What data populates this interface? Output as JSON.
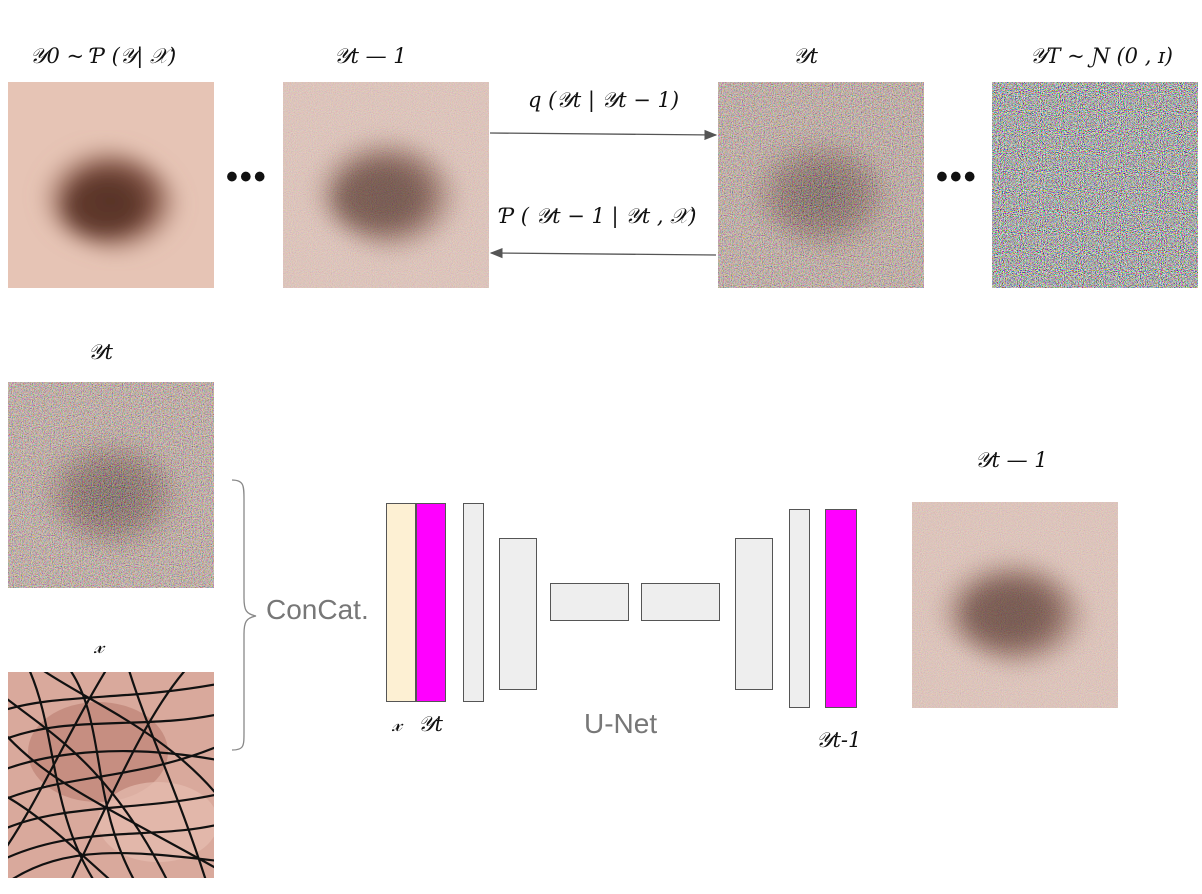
{
  "top_labels": {
    "y0": "𝒴0 ~ Ƥ (𝒴| 𝒳)",
    "y_t_minus_1": "𝒴t — 1",
    "y_t": "𝒴t",
    "y_T": "𝒴𝑇 ~ Ɲ (0 , ɪ)"
  },
  "forward_label": "q (𝒴t | 𝒴t − 1)",
  "reverse_label": "Ƥ ( 𝒴t − 1 | 𝒴t , 𝒳)",
  "ellipsis": "•••",
  "bottom_labels": {
    "y_t": "𝒴t",
    "x": "𝓍",
    "concat": "ConCat.",
    "unet": "U-Net",
    "input_x": "𝓍",
    "input_y": "𝒴t",
    "output": "𝒴t-1",
    "result": "𝒴t — 1"
  },
  "colors": {
    "x_channel": "#fdf0d3",
    "y_channel": "#ff00ff",
    "output_channel": "#ff00ff",
    "unet_block": "#eeeeee",
    "arrow": "#555555"
  },
  "images": {
    "clean_lesion": "dermoscopy lesion, clean",
    "noisy_lesion_low": "dermoscopy lesion, light noise",
    "noisy_lesion_high": "dermoscopy lesion, heavy noise",
    "pure_noise": "gaussian noise",
    "hair_mask": "skin with hair artifacts"
  }
}
